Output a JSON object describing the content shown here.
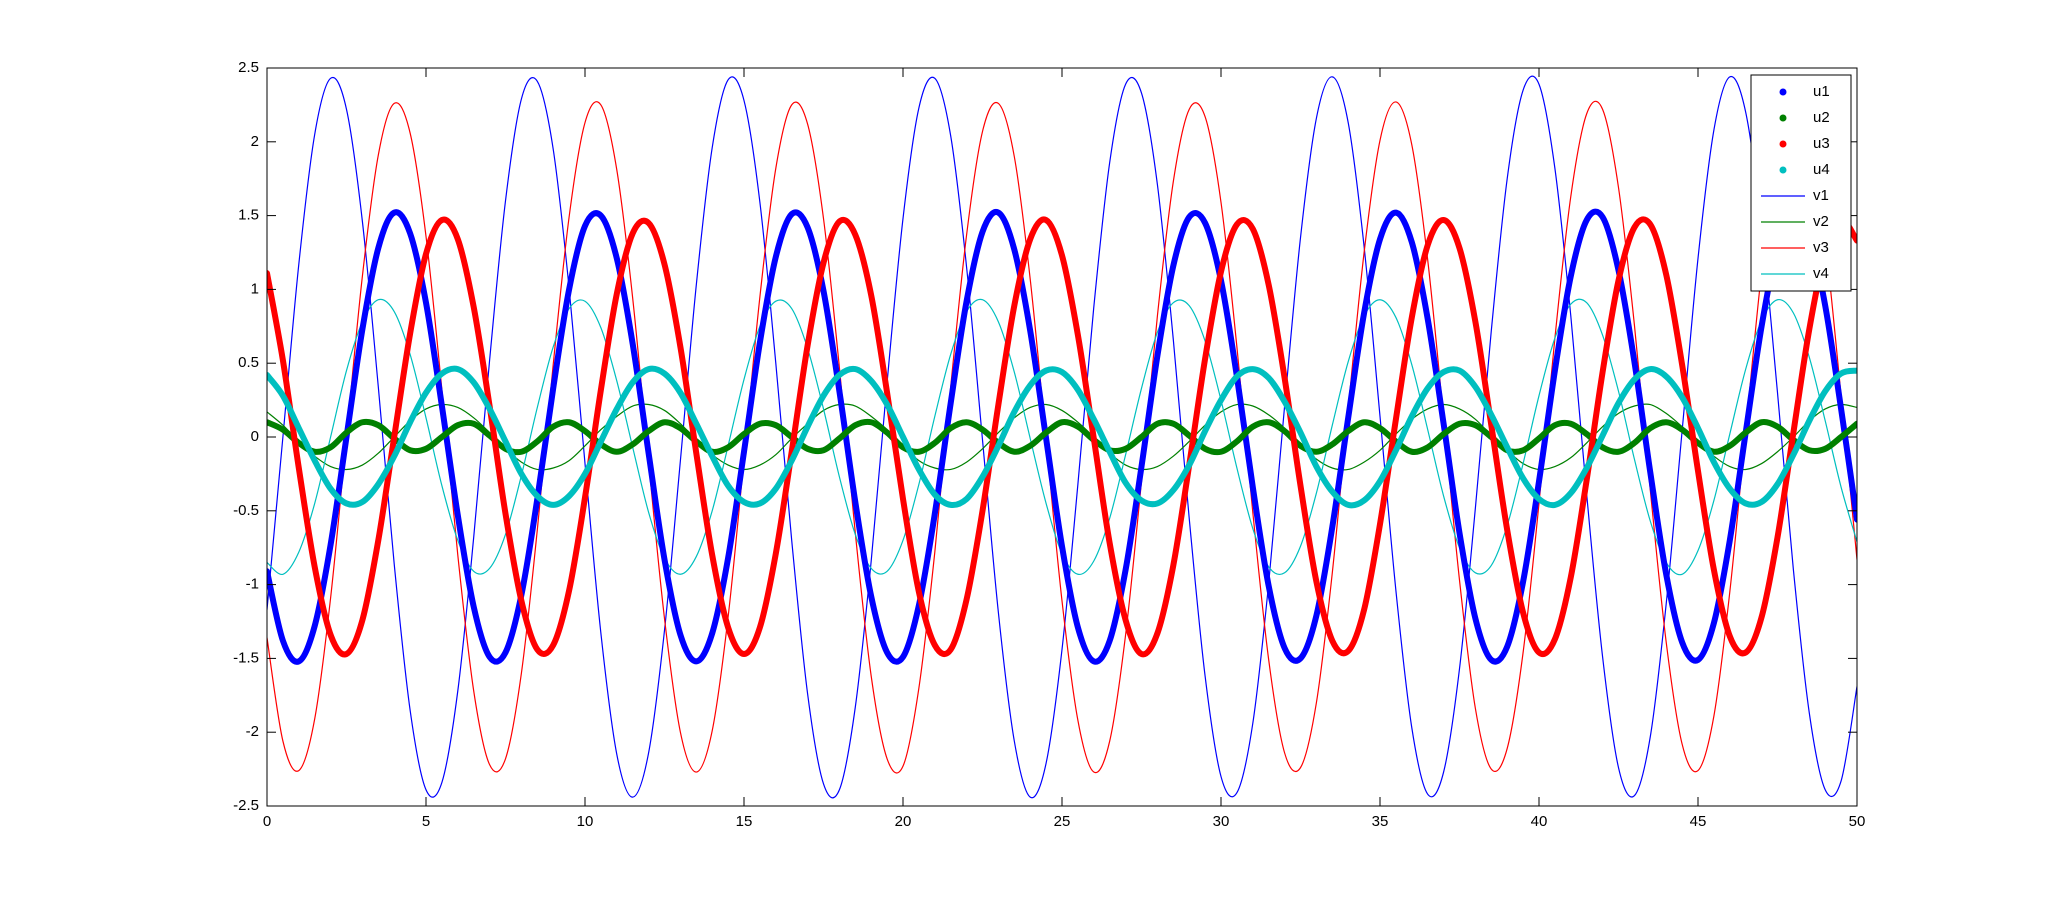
{
  "chart_data": {
    "type": "line",
    "x": [
      0,
      0.5,
      1,
      1.5,
      2,
      2.5,
      3,
      3.5,
      4,
      4.5,
      5,
      5.5,
      6,
      6.5,
      7,
      7.5,
      8,
      8.5,
      9,
      9.5,
      10,
      10.5,
      11,
      11.5,
      12,
      12.5,
      13,
      13.5,
      14,
      14.5,
      15,
      15.5,
      16,
      16.5,
      17,
      17.5,
      18,
      18.5,
      19,
      19.5,
      20,
      20.5,
      21,
      21.5,
      22,
      22.5,
      23,
      23.5,
      24,
      24.5,
      25,
      25.5,
      26,
      26.5,
      27,
      27.5,
      28,
      28.5,
      29,
      29.5,
      30,
      30.5,
      31,
      31.5,
      32,
      32.5,
      33,
      33.5,
      34,
      34.5,
      35,
      35.5,
      36,
      36.5,
      37,
      37.5,
      38,
      38.5,
      39,
      39.5,
      40,
      40.5,
      41,
      41.5,
      42,
      42.5,
      43,
      43.5,
      44,
      44.5,
      45,
      45.5,
      46,
      46.5,
      47,
      47.5,
      48,
      48.5,
      49,
      49.5,
      50
    ],
    "series": [
      {
        "name": "u1",
        "color": "#0000ff",
        "marker": ".",
        "values": [
          -0.91,
          -1.38,
          -1.52,
          -1.28,
          -0.73,
          0,
          0.73,
          1.28,
          1.52,
          1.38,
          0.91,
          0.21,
          -0.53,
          -1.15,
          -1.49,
          -1.46,
          -1.07,
          -0.42,
          0.33,
          1.0,
          1.43,
          1.5,
          1.21,
          0.63,
          -0.11,
          -0.83,
          -1.34,
          -1.52,
          -1.33,
          -0.82,
          -0.1,
          0.64,
          1.22,
          1.51,
          1.42,
          0.99,
          0.31,
          -0.44,
          -1.08,
          -1.46,
          -1.49,
          -1.14,
          -0.52,
          0.23,
          0.92,
          1.39,
          1.52,
          1.27,
          0.72,
          -0.01,
          -0.74,
          -1.29,
          -1.52,
          -1.38,
          -0.9,
          -0.2,
          0.55,
          1.16,
          1.49,
          1.45,
          1.06,
          0.41,
          -0.34,
          -1.01,
          -1.43,
          -1.5,
          -1.21,
          -0.61,
          0.13,
          0.84,
          1.34,
          1.52,
          1.32,
          0.8,
          0.09,
          -0.65,
          -1.23,
          -1.51,
          -1.42,
          -0.98,
          -0.3,
          0.45,
          1.09,
          1.47,
          1.49,
          1.13,
          0.51,
          -0.24,
          -0.93,
          -1.39,
          -1.51,
          -1.26,
          -0.7,
          0.03,
          0.75,
          1.29,
          1.52,
          1.37,
          0.89,
          0.19,
          -0.56
        ]
      },
      {
        "name": "u2",
        "color": "#008000",
        "marker": ".",
        "values": [
          0.1,
          0.05,
          -0.04,
          -0.1,
          -0.07,
          0.03,
          0.1,
          0.08,
          -0.01,
          -0.09,
          -0.08,
          0,
          0.08,
          0.09,
          0.01,
          -0.08,
          -0.1,
          -0.03,
          0.07,
          0.1,
          0.04,
          -0.05,
          -0.1,
          -0.05,
          0.04,
          0.1,
          0.06,
          -0.03,
          -0.1,
          -0.07,
          0.02,
          0.09,
          0.08,
          0,
          -0.08,
          -0.09,
          -0.01,
          0.08,
          0.1,
          0.03,
          -0.07,
          -0.1,
          -0.04,
          0.06,
          0.1,
          0.05,
          -0.04,
          -0.1,
          -0.06,
          0.03,
          0.1,
          0.07,
          -0.02,
          -0.09,
          -0.08,
          0,
          0.09,
          0.09,
          0.01,
          -0.08,
          -0.1,
          -0.03,
          0.07,
          0.1,
          0.04,
          -0.06,
          -0.1,
          -0.05,
          0.04,
          0.1,
          0.06,
          -0.03,
          -0.1,
          -0.07,
          0.02,
          0.09,
          0.08,
          0,
          -0.09,
          -0.09,
          -0.01,
          0.08,
          0.09,
          0.02,
          -0.07,
          -0.1,
          -0.04,
          0.06,
          0.1,
          0.05,
          -0.04,
          -0.1,
          -0.06,
          0.03,
          0.1,
          0.07,
          -0.02,
          -0.09,
          -0.08,
          0,
          0.09
        ]
      },
      {
        "name": "u3",
        "color": "#ff0000",
        "marker": ".",
        "values": [
          1.11,
          0.52,
          -0.21,
          -0.88,
          -1.34,
          -1.47,
          -1.24,
          -0.7,
          0,
          0.7,
          1.24,
          1.47,
          1.34,
          0.88,
          0.21,
          -0.52,
          -1.11,
          -1.44,
          -1.41,
          -1.04,
          -0.41,
          0.32,
          0.97,
          1.38,
          1.45,
          1.17,
          0.61,
          -0.11,
          -0.8,
          -1.29,
          -1.47,
          -1.29,
          -0.79,
          -0.1,
          0.62,
          1.18,
          1.46,
          1.37,
          0.96,
          0.3,
          -0.42,
          -1.05,
          -1.41,
          -1.44,
          -1.1,
          -0.5,
          0.22,
          0.89,
          1.34,
          1.47,
          1.23,
          0.69,
          -0.01,
          -0.72,
          -1.24,
          -1.47,
          -1.33,
          -0.87,
          -0.19,
          0.53,
          1.12,
          1.44,
          1.41,
          1.03,
          0.4,
          -0.33,
          -0.98,
          -1.38,
          -1.45,
          -1.17,
          -0.59,
          0.12,
          0.81,
          1.3,
          1.47,
          1.28,
          0.78,
          0.08,
          -0.63,
          -1.19,
          -1.46,
          -1.37,
          -0.95,
          -0.29,
          0.44,
          1.06,
          1.42,
          1.44,
          1.1,
          0.49,
          -0.23,
          -0.9,
          -1.35,
          -1.46,
          -1.22,
          -0.68,
          0.03,
          0.73,
          1.25,
          1.47,
          1.33
        ]
      },
      {
        "name": "u4",
        "color": "#00bfbf",
        "marker": ".",
        "values": [
          0.42,
          0.28,
          0.06,
          -0.16,
          -0.35,
          -0.45,
          -0.44,
          -0.32,
          -0.13,
          0.1,
          0.3,
          0.43,
          0.46,
          0.37,
          0.19,
          -0.03,
          -0.25,
          -0.4,
          -0.46,
          -0.4,
          -0.25,
          -0.03,
          0.19,
          0.37,
          0.46,
          0.43,
          0.3,
          0.09,
          -0.13,
          -0.33,
          -0.44,
          -0.45,
          -0.35,
          -0.16,
          0.07,
          0.28,
          0.42,
          0.46,
          0.38,
          0.22,
          0,
          -0.22,
          -0.39,
          -0.46,
          -0.42,
          -0.27,
          -0.06,
          0.17,
          0.35,
          0.45,
          0.44,
          0.32,
          0.12,
          -0.1,
          -0.31,
          -0.43,
          -0.45,
          -0.36,
          -0.19,
          0.04,
          0.25,
          0.41,
          0.46,
          0.4,
          0.24,
          0.03,
          -0.2,
          -0.37,
          -0.46,
          -0.43,
          -0.3,
          -0.09,
          0.14,
          0.33,
          0.44,
          0.45,
          0.34,
          0.15,
          -0.07,
          -0.28,
          -0.42,
          -0.46,
          -0.38,
          -0.21,
          0.01,
          0.23,
          0.39,
          0.46,
          0.41,
          0.27,
          0.06,
          -0.17,
          -0.35,
          -0.45,
          -0.44,
          -0.32,
          -0.12,
          0.11,
          0.31,
          0.43,
          0.45
        ]
      },
      {
        "name": "v1",
        "color": "#0000ff",
        "marker": "none",
        "values": [
          -1.17,
          0,
          1.17,
          2.05,
          2.43,
          2.22,
          1.46,
          0.34,
          -0.86,
          -1.85,
          -2.39,
          -2.34,
          -1.72,
          -0.68,
          0.52,
          1.6,
          2.29,
          2.41,
          1.95,
          1.01,
          -0.18,
          -1.33,
          -2.15,
          -2.44,
          -2.14,
          -1.31,
          -0.16,
          1.03,
          1.96,
          2.42,
          2.28,
          1.59,
          0.5,
          -0.7,
          -1.74,
          -2.35,
          -2.39,
          -1.83,
          -0.84,
          0.37,
          1.48,
          2.23,
          2.43,
          2.04,
          1.15,
          -0.02,
          -1.19,
          -2.06,
          -2.44,
          -2.21,
          -1.44,
          -0.32,
          0.88,
          1.86,
          2.39,
          2.33,
          1.71,
          0.66,
          -0.55,
          -1.62,
          -2.3,
          -2.41,
          -1.94,
          -0.99,
          0.21,
          1.35,
          2.16,
          2.44,
          2.13,
          1.29,
          0.14,
          -1.04,
          -1.97,
          -2.42,
          -2.27,
          -1.57,
          -0.48,
          0.72,
          1.75,
          2.35,
          2.39,
          1.82,
          0.82,
          -0.39,
          -1.49,
          -2.24,
          -2.43,
          -2.03,
          -1.13,
          0.04,
          1.21,
          2.08,
          2.44,
          2.2,
          1.43,
          0.3,
          -0.9,
          -1.87,
          -2.39,
          -2.33,
          -1.69
        ]
      },
      {
        "name": "v2",
        "color": "#008000",
        "marker": "none",
        "values": [
          0.17,
          0.08,
          -0.03,
          -0.13,
          -0.2,
          -0.22,
          -0.19,
          -0.11,
          0,
          0.11,
          0.19,
          0.22,
          0.2,
          0.13,
          0.03,
          -0.08,
          -0.17,
          -0.22,
          -0.21,
          -0.16,
          -0.06,
          0.05,
          0.14,
          0.21,
          0.22,
          0.18,
          0.09,
          -0.02,
          -0.12,
          -0.19,
          -0.22,
          -0.19,
          -0.12,
          -0.01,
          0.09,
          0.18,
          0.22,
          0.21,
          0.14,
          0.05,
          -0.06,
          -0.16,
          -0.21,
          -0.22,
          -0.17,
          -0.08,
          0.03,
          0.13,
          0.2,
          0.22,
          0.18,
          0.1,
          0,
          -0.11,
          -0.19,
          -0.22,
          -0.2,
          -0.13,
          -0.03,
          0.08,
          0.17,
          0.22,
          0.21,
          0.15,
          0.06,
          -0.05,
          -0.15,
          -0.21,
          -0.22,
          -0.17,
          -0.09,
          0.02,
          0.12,
          0.19,
          0.22,
          0.19,
          0.12,
          0.01,
          -0.09,
          -0.18,
          -0.22,
          -0.2,
          -0.14,
          -0.04,
          0.07,
          0.16,
          0.21,
          0.22,
          0.16,
          0.07,
          -0.03,
          -0.13,
          -0.2,
          -0.22,
          -0.18,
          -0.1,
          0,
          0.11,
          0.19,
          0.22,
          0.2
        ]
      },
      {
        "name": "v3",
        "color": "#ff0000",
        "marker": "none",
        "values": [
          -1.36,
          -2.06,
          -2.26,
          -1.91,
          -1.09,
          0,
          1.09,
          1.91,
          2.26,
          2.06,
          1.36,
          0.32,
          -0.8,
          -1.72,
          -2.22,
          -2.18,
          -1.6,
          -0.63,
          0.49,
          1.49,
          2.13,
          2.25,
          1.81,
          0.94,
          -0.17,
          -1.23,
          -2.0,
          -2.27,
          -1.99,
          -1.22,
          -0.15,
          0.95,
          1.82,
          2.25,
          2.12,
          1.48,
          0.47,
          -0.65,
          -1.62,
          -2.18,
          -2.23,
          -1.7,
          -0.78,
          0.34,
          1.37,
          2.07,
          2.26,
          1.9,
          1.07,
          -0.02,
          -1.11,
          -1.92,
          -2.27,
          -2.06,
          -1.34,
          -0.3,
          0.82,
          1.73,
          2.22,
          2.17,
          1.59,
          0.61,
          -0.51,
          -1.51,
          -2.14,
          -2.24,
          -1.8,
          -0.92,
          0.19,
          1.25,
          2.01,
          2.27,
          1.98,
          1.2,
          0.13,
          -0.97,
          -1.84,
          -2.25,
          -2.11,
          -1.46,
          -0.45,
          0.67,
          1.63,
          2.19,
          2.22,
          1.69,
          0.76,
          -0.36,
          -1.39,
          -2.08,
          -2.26,
          -1.89,
          -1.05,
          0.04,
          1.12,
          1.93,
          2.27,
          2.05,
          1.33,
          0.28,
          -0.83
        ]
      },
      {
        "name": "v4",
        "color": "#00bfbf",
        "marker": "none",
        "values": [
          -0.85,
          -0.93,
          -0.78,
          -0.45,
          0,
          0.45,
          0.78,
          0.93,
          0.85,
          0.56,
          0.13,
          -0.33,
          -0.7,
          -0.91,
          -0.89,
          -0.66,
          -0.26,
          0.2,
          0.61,
          0.87,
          0.92,
          0.74,
          0.38,
          -0.07,
          -0.51,
          -0.82,
          -0.93,
          -0.81,
          -0.5,
          -0.06,
          0.39,
          0.75,
          0.92,
          0.87,
          0.6,
          0.19,
          -0.27,
          -0.66,
          -0.89,
          -0.91,
          -0.7,
          -0.32,
          0.14,
          0.56,
          0.85,
          0.93,
          0.78,
          0.44,
          -0.01,
          -0.45,
          -0.79,
          -0.93,
          -0.84,
          -0.55,
          -0.12,
          0.33,
          0.71,
          0.91,
          0.89,
          0.65,
          0.25,
          -0.21,
          -0.62,
          -0.88,
          -0.92,
          -0.74,
          -0.38,
          0.08,
          0.51,
          0.82,
          0.93,
          0.81,
          0.49,
          0.05,
          -0.4,
          -0.75,
          -0.92,
          -0.87,
          -0.6,
          -0.18,
          0.28,
          0.67,
          0.9,
          0.91,
          0.69,
          0.31,
          -0.15,
          -0.57,
          -0.85,
          -0.93,
          -0.77,
          -0.43,
          0.02,
          0.46,
          0.79,
          0.93,
          0.84,
          0.54,
          0.11,
          -0.34,
          -0.71
        ]
      }
    ],
    "xlim": [
      0,
      50
    ],
    "xticks": [
      0,
      5,
      10,
      15,
      20,
      25,
      30,
      35,
      40,
      45,
      50
    ],
    "ylim": [
      -2.5,
      2.5
    ],
    "yticks": [
      -2.5,
      -2,
      -1.5,
      -1,
      -0.5,
      0,
      0.5,
      1,
      1.5,
      2,
      2.5
    ],
    "grid": false,
    "legend": "northeast"
  }
}
